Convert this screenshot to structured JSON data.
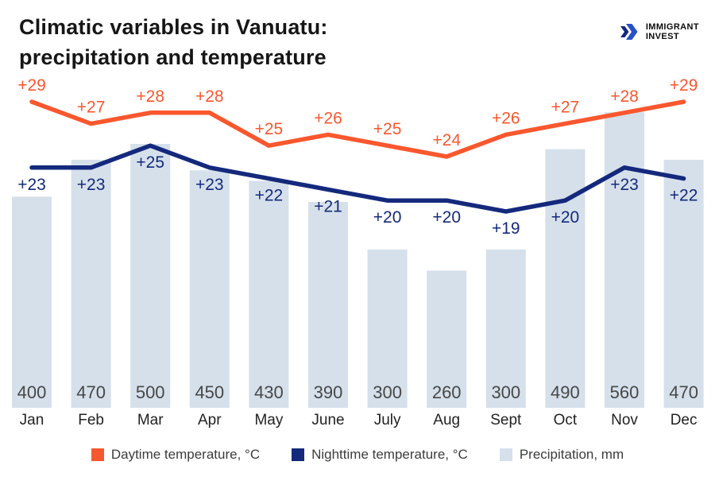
{
  "header": {
    "title_line1": "Climatic variables in Vanuatu:",
    "title_line2": "precipitation and temperature",
    "logo_line1": "IMMIGRANT",
    "logo_line2": "INVEST"
  },
  "colors": {
    "daytime_orange": "#F9572E",
    "nighttime_navy": "#14297C",
    "precipitation_bar": "#D5E0EB",
    "logo_chevron_dark": "#14297C",
    "logo_chevron_blue": "#2A50C8",
    "title_text": "#161616",
    "precip_value_text": "#474747",
    "month_text": "#222222",
    "legend_text": "#3C3C3C"
  },
  "legend": {
    "items": [
      {
        "label": "Daytime temperature, °C",
        "color": "#F9572E"
      },
      {
        "label": "Nighttime temperature, °C",
        "color": "#14297C"
      },
      {
        "label": "Precipitation, mm",
        "color": "#D5E0EB"
      }
    ]
  },
  "chart_data": {
    "type": "combo-bar-line",
    "categories": [
      "Jan",
      "Feb",
      "Mar",
      "Apr",
      "May",
      "June",
      "July",
      "Aug",
      "Sept",
      "Oct",
      "Nov",
      "Dec"
    ],
    "series": [
      {
        "name": "Daytime temperature, °C",
        "type": "line",
        "color": "#F9572E",
        "values": [
          29,
          27,
          28,
          28,
          25,
          26,
          25,
          24,
          26,
          27,
          28,
          29
        ],
        "labels": [
          "+29",
          "+27",
          "+28",
          "+28",
          "+25",
          "+26",
          "+25",
          "+24",
          "+26",
          "+27",
          "+28",
          "+29"
        ]
      },
      {
        "name": "Nighttime temperature, °C",
        "type": "line",
        "color": "#14297C",
        "values": [
          23,
          23,
          25,
          23,
          22,
          21,
          20,
          20,
          19,
          20,
          23,
          22
        ],
        "labels": [
          "+23",
          "+23",
          "+25",
          "+23",
          "+22",
          "+21",
          "+20",
          "+20",
          "+19",
          "+20",
          "+23",
          "+22"
        ]
      },
      {
        "name": "Precipitation, mm",
        "type": "bar",
        "color": "#D5E0EB",
        "values": [
          400,
          470,
          500,
          450,
          430,
          390,
          300,
          260,
          300,
          490,
          560,
          470
        ],
        "labels": [
          "400",
          "470",
          "500",
          "450",
          "430",
          "390",
          "300",
          "260",
          "300",
          "490",
          "560",
          "470"
        ]
      }
    ],
    "title": "Climatic variables in Vanuatu: precipitation and temperature",
    "xlabel": "",
    "ylabel": "",
    "grid": false,
    "legend_position": "bottom",
    "temperature_axis_note": "unlabeled shared scale for both lines",
    "precipitation_axis_note": "unlabeled, bar heights proportional to mm"
  }
}
